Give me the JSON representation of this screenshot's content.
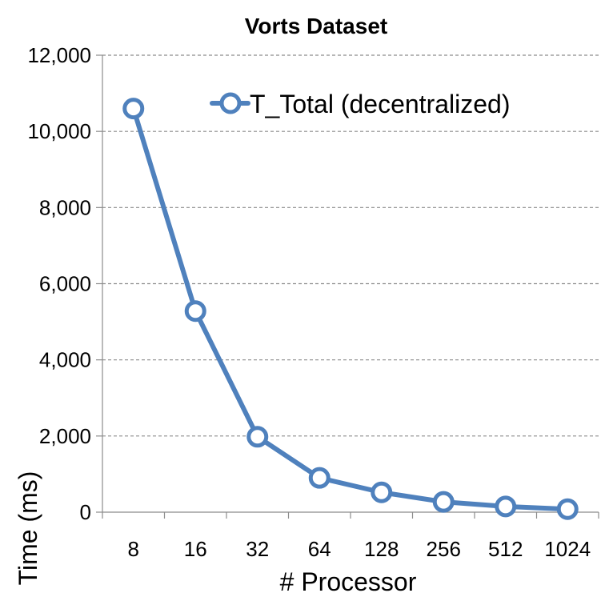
{
  "chart_data": {
    "type": "line",
    "title": "Vorts Dataset",
    "xlabel": "# Processor",
    "ylabel": "Time (ms)",
    "categories": [
      "8",
      "16",
      "32",
      "64",
      "128",
      "256",
      "512",
      "1024"
    ],
    "ylim": [
      0,
      12000
    ],
    "yticks": [
      0,
      2000,
      4000,
      6000,
      8000,
      10000,
      12000
    ],
    "ytick_labels": [
      "0",
      "2,000",
      "4,000",
      "6,000",
      "8,000",
      "10,000",
      "12,000"
    ],
    "grid": "horizontal dashed",
    "legend_position": "top-right",
    "series": [
      {
        "name": "T_Total (decentralized)",
        "values": [
          10600,
          5280,
          1980,
          900,
          520,
          270,
          150,
          80
        ],
        "color": "#4f81bd",
        "marker": "hollow-circle"
      }
    ]
  }
}
